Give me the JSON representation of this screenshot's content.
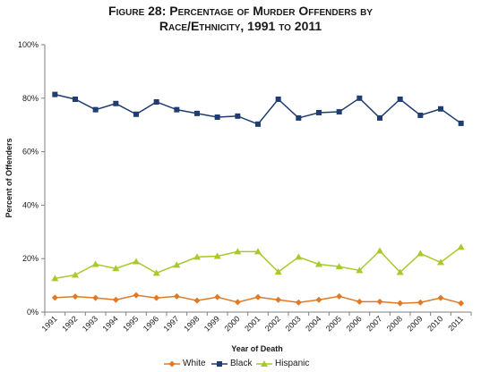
{
  "title": {
    "line1": "Figure 28: Percentage of Murder Offenders by",
    "line2": "Race/Ethnicity, 1991 to 2011"
  },
  "chart_data": {
    "type": "line",
    "title": "Figure 28: Percentage of Murder Offenders by Race/Ethnicity, 1991 to 2011",
    "xlabel": "Year of Death",
    "ylabel": "Percent of Offenders",
    "ylim": [
      0,
      100
    ],
    "y_ticks": [
      "0%",
      "20%",
      "40%",
      "60%",
      "80%",
      "100%"
    ],
    "grid": false,
    "legend_position": "bottom",
    "categories": [
      "1991",
      "1992",
      "1993",
      "1994",
      "1995",
      "1996",
      "1997",
      "1998",
      "1999",
      "2000",
      "2001",
      "2002",
      "2003",
      "2004",
      "2005",
      "2006",
      "2007",
      "2008",
      "2009",
      "2010",
      "2011"
    ],
    "series": [
      {
        "name": "White",
        "color": "#e07a26",
        "marker": "diamond",
        "values": [
          5.4,
          5.8,
          5.3,
          4.6,
          6.3,
          5.3,
          5.9,
          4.3,
          5.6,
          3.7,
          5.6,
          4.6,
          3.6,
          4.6,
          5.9,
          3.9,
          3.9,
          3.3,
          3.6,
          5.3,
          3.3
        ]
      },
      {
        "name": "Black",
        "color": "#1f3d70",
        "marker": "square",
        "values": [
          81.4,
          79.6,
          75.7,
          78.0,
          74.0,
          78.6,
          75.7,
          74.3,
          72.9,
          73.3,
          70.3,
          79.6,
          72.6,
          74.6,
          74.9,
          80.0,
          72.6,
          79.6,
          73.6,
          76.0,
          70.6
        ]
      },
      {
        "name": "Hispanic",
        "color": "#a8c92a",
        "marker": "triangle",
        "values": [
          12.6,
          13.9,
          17.9,
          16.3,
          18.9,
          14.6,
          17.6,
          20.6,
          20.9,
          22.6,
          22.6,
          15.0,
          20.6,
          17.9,
          17.0,
          15.6,
          22.9,
          14.9,
          21.9,
          18.6,
          24.3
        ]
      }
    ]
  }
}
